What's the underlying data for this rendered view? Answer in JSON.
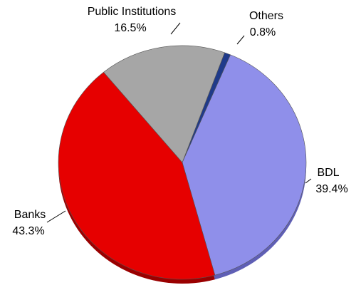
{
  "chart_data": {
    "type": "pie",
    "title": "",
    "slices": [
      {
        "label": "Others",
        "value": 0.8,
        "value_label": "0.8%",
        "color": "#1F3A8A",
        "side_color": "#142660"
      },
      {
        "label": "BDL",
        "value": 39.4,
        "value_label": "39.4%",
        "color": "#8F8FEA",
        "side_color": "#5F5FB5"
      },
      {
        "label": "Banks",
        "value": 43.3,
        "value_label": "43.3%",
        "color": "#E60000",
        "side_color": "#9A0000"
      },
      {
        "label": "Public Institutions",
        "value": 16.5,
        "value_label": "16.5%",
        "color": "#A6A6A6",
        "side_color": "#7A7A7A"
      }
    ],
    "start_angle_deg": 20,
    "direction": "clockwise",
    "legend": "none"
  }
}
